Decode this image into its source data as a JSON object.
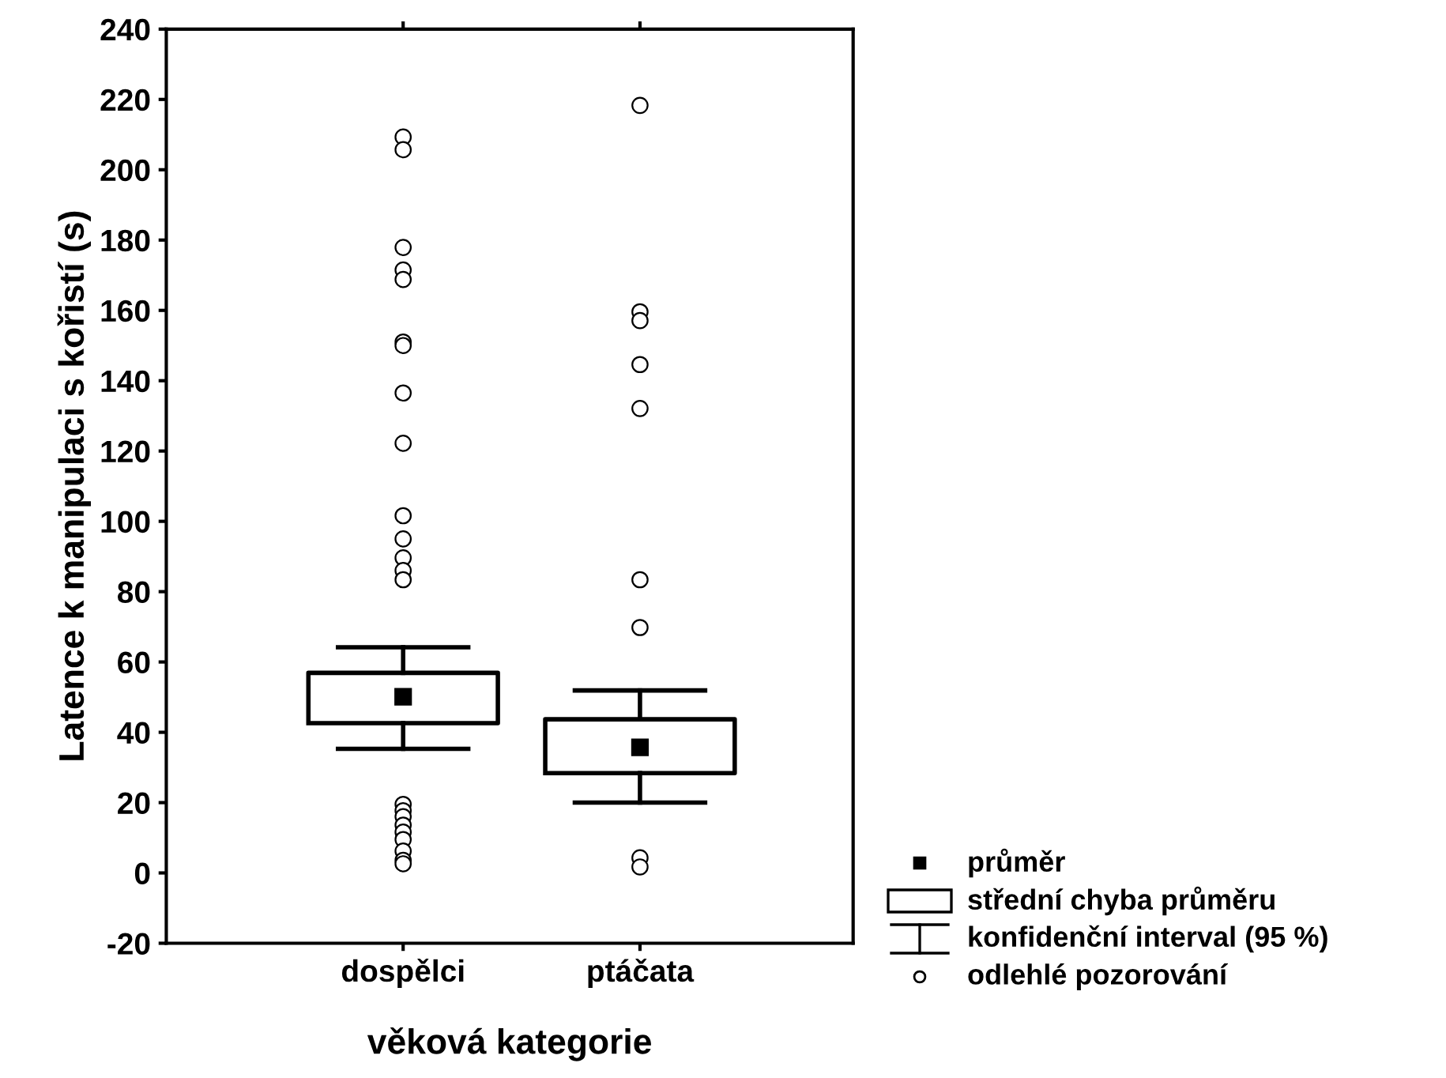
{
  "chart_data": {
    "type": "box",
    "xlabel": "věková kategorie",
    "ylabel": "Latence k manipulaci s kořistí (s)",
    "categories": [
      "dospělci",
      "ptáčata"
    ],
    "boxes": [
      {
        "low": 35.3,
        "q1": 42.6,
        "q3": 56.9,
        "high": 64.2,
        "mean": 50.1,
        "outliers": [
          209.3,
          205.7,
          177.9,
          171.5,
          168.8,
          151,
          150,
          136.5,
          122.2,
          101.6,
          95,
          89.6,
          86,
          83.4,
          19.5,
          17.7,
          16,
          13.6,
          11.6,
          9.5,
          6.2,
          3.6,
          2.6
        ]
      },
      {
        "low": 20.0,
        "q1": 28.4,
        "q3": 43.7,
        "high": 51.9,
        "mean": 35.7,
        "outliers": [
          218.3,
          159.6,
          157.1,
          144.6,
          132.1,
          83.4,
          69.8,
          4.3,
          1.7
        ]
      }
    ],
    "ylim": [
      -20,
      240
    ],
    "yticks": [
      -20,
      0,
      20,
      40,
      60,
      80,
      100,
      120,
      140,
      160,
      180,
      200,
      220,
      240
    ],
    "grid": false,
    "annotations": [
      "průměr",
      "střední chyba průměru",
      "konfidenční interval (95 %)",
      "odlehlé pozorování"
    ]
  }
}
